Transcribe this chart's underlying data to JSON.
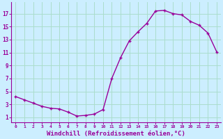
{
  "x": [
    0,
    1,
    2,
    3,
    4,
    5,
    6,
    7,
    8,
    9,
    10,
    11,
    12,
    13,
    14,
    15,
    16,
    17,
    18,
    19,
    20,
    21,
    22,
    23
  ],
  "y": [
    4.2,
    3.7,
    3.2,
    2.7,
    2.4,
    2.3,
    1.8,
    1.2,
    1.3,
    1.5,
    2.2,
    7.0,
    10.2,
    12.8,
    14.2,
    15.5,
    17.4,
    17.5,
    17.0,
    16.8,
    15.8,
    15.2,
    14.0,
    11.1
  ],
  "line_color": "#990099",
  "marker": "+",
  "marker_size": 3,
  "marker_lw": 1.0,
  "line_width": 1.0,
  "bg_color": "#cceeff",
  "grid_color": "#aaddcc",
  "xlabel": "Windchill (Refroidissement éolien,°C)",
  "xlabel_fontsize": 6.5,
  "ytick_values": [
    1,
    3,
    5,
    7,
    9,
    11,
    13,
    15,
    17
  ],
  "xtick_labels": [
    "0",
    "1",
    "2",
    "3",
    "4",
    "5",
    "6",
    "7",
    "8",
    "9",
    "10",
    "11",
    "12",
    "13",
    "14",
    "15",
    "16",
    "17",
    "18",
    "19",
    "20",
    "21",
    "22",
    "23"
  ],
  "ylim": [
    0.2,
    18.8
  ],
  "xlim": [
    -0.5,
    23.5
  ]
}
